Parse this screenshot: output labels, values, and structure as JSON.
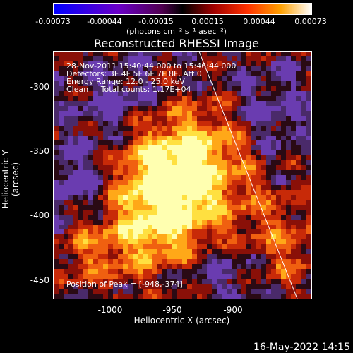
{
  "colorbar": {
    "ticks": [
      "-0.00073",
      "-0.00044",
      "-0.00015",
      "0.00015",
      "0.00044",
      "0.00073"
    ],
    "units": "(photons cm⁻² s⁻¹ asec⁻²)"
  },
  "title": "Reconstructed RHESSI Image",
  "info": {
    "time": "28-Nov-2011 15:40:44.000 to 15:46:44.000",
    "detectors": "Detectors: 3F 4F 5F 6F 7F 8F, Att 0",
    "energy": "Energy Range: 12.0 - 25.0 keV",
    "clean": "Clean     Total counts: 1.17E+04",
    "peak": "Position of Peak = [-948,-374]"
  },
  "axes": {
    "xlabel": "Heliocentric X (arcsec)",
    "ylabel": "Heliocentric Y (arcsec)",
    "xticks": [
      "-1000",
      "-950",
      "-900"
    ],
    "yticks": [
      "-300",
      "-350",
      "-400",
      "-450"
    ]
  },
  "footer": {
    "date": "16-May-2022 14:15"
  },
  "colors": {
    "background": "#000000",
    "limb_line": "#ffffff"
  }
}
